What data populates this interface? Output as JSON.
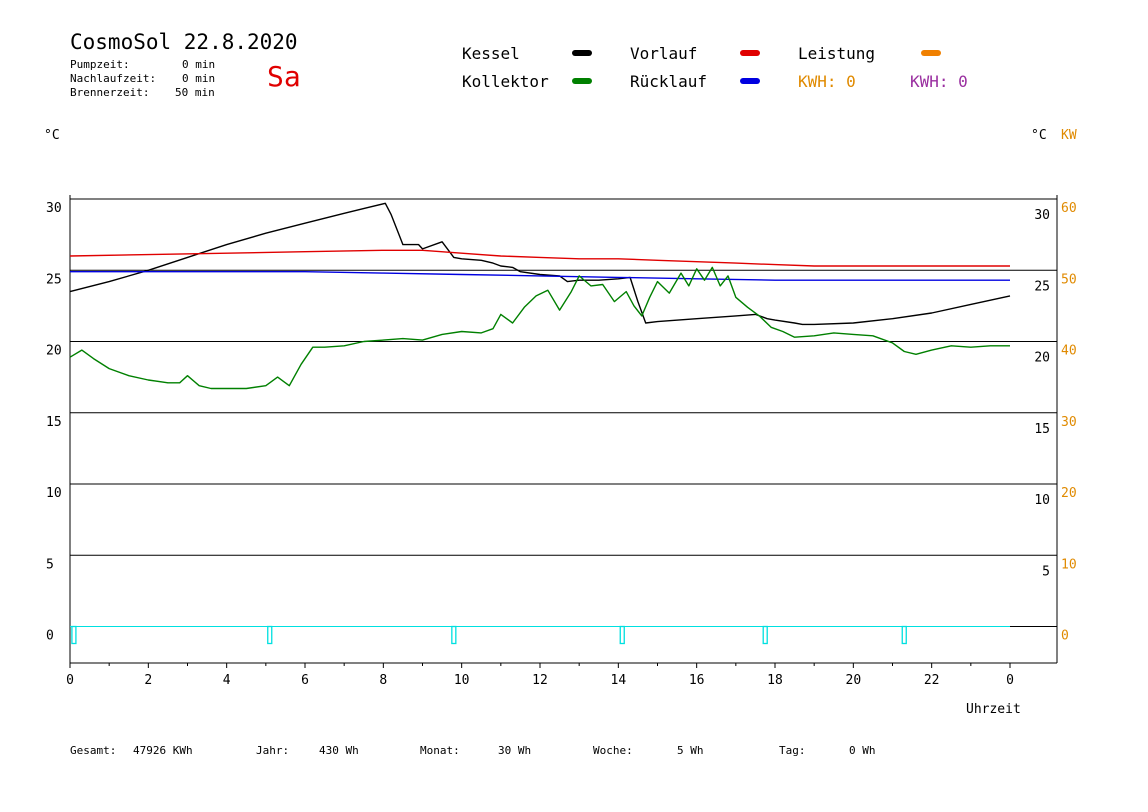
{
  "header": {
    "title": "CosmoSol 22.8.2020",
    "day": "Sa",
    "pumpzeit_label": "Pumpzeit:",
    "pumpzeit_value": "0 min",
    "nachlaufzeit_label": "Nachlaufzeit:",
    "nachlaufzeit_value": "0 min",
    "brennerzeit_label": "Brennerzeit:",
    "brennerzeit_value": "50 min"
  },
  "legend": {
    "kessel": "Kessel",
    "kollektor": "Kollektor",
    "vorlauf": "Vorlauf",
    "ruecklauf": "Rücklauf",
    "leistung": "Leistung",
    "kwh1": "KWH: 0",
    "kwh2": "KWH: 0"
  },
  "axes": {
    "left_unit": "°C",
    "right_unit_c": "°C",
    "right_unit_kw": "KW",
    "xlabel": "Uhrzeit"
  },
  "colors": {
    "kessel": "#000000",
    "kollektor": "#008000",
    "vorlauf": "#e00000",
    "ruecklauf": "#0000e0",
    "leistung": "#f08000",
    "kwh2": "#9a2fa0",
    "pump": "#00e0e0"
  },
  "footer": {
    "gesamt_label": "Gesamt:",
    "gesamt_value": "47926 KWh",
    "jahr_label": "Jahr:",
    "jahr_value": "430 Wh",
    "monat_label": "Monat:",
    "monat_value": "30 Wh",
    "woche_label": "Woche:",
    "woche_value": "5 Wh",
    "tag_label": "Tag:",
    "tag_value": "0 Wh"
  },
  "chart_data": {
    "type": "line",
    "xlabel": "Uhrzeit",
    "ylabel": "°C",
    "xlim": [
      0,
      24
    ],
    "ylim": [
      -2.5,
      30
    ],
    "y_ticks_left": [
      "30",
      "25",
      "20",
      "15",
      "10",
      "5",
      "0"
    ],
    "y_ticks_right_c": [
      "30",
      "25",
      "20",
      "15",
      "10",
      "5"
    ],
    "y_ticks_right_kw": [
      "60",
      "50",
      "40",
      "30",
      "20",
      "10",
      "0"
    ],
    "x_ticks": [
      "0",
      "2",
      "4",
      "6",
      "8",
      "10",
      "12",
      "14",
      "16",
      "18",
      "20",
      "22",
      "0"
    ],
    "grid_y": [
      30,
      25,
      20,
      15,
      10,
      5,
      0
    ],
    "series": [
      {
        "name": "Kessel",
        "color": "#000000",
        "x": [
          0,
          1,
          2,
          3,
          4,
          5,
          6,
          7,
          7.6,
          8.05,
          8.2,
          8.4,
          8.5,
          8.9,
          9.0,
          9.5,
          9.8,
          10.0,
          10.5,
          10.8,
          11.0,
          11.3,
          11.5,
          12.0,
          12.5,
          12.7,
          13.0,
          13.5,
          14.0,
          14.3,
          14.5,
          14.7,
          15.0,
          16.0,
          17.0,
          17.5,
          17.8,
          18.0,
          18.5,
          18.7,
          19.0,
          20.0,
          21.0,
          22.0,
          23.0,
          24.0
        ],
        "y": [
          23.5,
          24.2,
          25.0,
          25.9,
          26.8,
          27.6,
          28.3,
          29.0,
          29.4,
          29.7,
          28.9,
          27.5,
          26.8,
          26.8,
          26.5,
          27.0,
          25.9,
          25.8,
          25.7,
          25.5,
          25.3,
          25.2,
          24.9,
          24.7,
          24.6,
          24.2,
          24.3,
          24.3,
          24.4,
          24.5,
          22.8,
          21.3,
          21.4,
          21.6,
          21.8,
          21.9,
          21.6,
          21.5,
          21.3,
          21.2,
          21.2,
          21.3,
          21.6,
          22.0,
          22.6,
          23.2
        ]
      },
      {
        "name": "Vorlauf",
        "color": "#e00000",
        "x": [
          0,
          2,
          4,
          6,
          8,
          9,
          10,
          11,
          12,
          13,
          14,
          15,
          16,
          17,
          18,
          19,
          20,
          21,
          22,
          23,
          24
        ],
        "y": [
          26.0,
          26.1,
          26.2,
          26.3,
          26.4,
          26.4,
          26.2,
          26.0,
          25.9,
          25.8,
          25.8,
          25.7,
          25.6,
          25.5,
          25.4,
          25.3,
          25.3,
          25.3,
          25.3,
          25.3,
          25.3
        ]
      },
      {
        "name": "Rücklauf",
        "color": "#0000e0",
        "x": [
          0,
          2,
          4,
          6,
          8,
          10,
          12,
          14,
          16,
          18,
          20,
          22,
          24
        ],
        "y": [
          24.9,
          24.9,
          24.9,
          24.9,
          24.8,
          24.7,
          24.6,
          24.5,
          24.4,
          24.3,
          24.3,
          24.3,
          24.3
        ]
      },
      {
        "name": "Kollektor",
        "color": "#008000",
        "x": [
          0,
          0.3,
          0.6,
          1.0,
          1.5,
          2.0,
          2.5,
          2.8,
          3.0,
          3.3,
          3.6,
          4.0,
          4.5,
          5.0,
          5.3,
          5.6,
          5.9,
          6.2,
          6.5,
          7.0,
          7.5,
          8.0,
          8.5,
          9.0,
          9.5,
          10.0,
          10.5,
          10.8,
          11.0,
          11.3,
          11.6,
          11.9,
          12.2,
          12.5,
          12.8,
          13.0,
          13.3,
          13.6,
          13.9,
          14.2,
          14.4,
          14.6,
          14.8,
          15.0,
          15.3,
          15.6,
          15.8,
          16.0,
          16.2,
          16.4,
          16.6,
          16.8,
          17.0,
          17.3,
          17.6,
          17.9,
          18.2,
          18.5,
          19.0,
          19.5,
          20.0,
          20.5,
          21.0,
          21.3,
          21.6,
          22.0,
          22.5,
          23.0,
          23.5,
          24.0
        ],
        "y": [
          18.9,
          19.4,
          18.8,
          18.1,
          17.6,
          17.3,
          17.1,
          17.1,
          17.6,
          16.9,
          16.7,
          16.7,
          16.7,
          16.9,
          17.5,
          16.9,
          18.4,
          19.6,
          19.6,
          19.7,
          20.0,
          20.1,
          20.2,
          20.1,
          20.5,
          20.7,
          20.6,
          20.9,
          21.9,
          21.3,
          22.4,
          23.2,
          23.6,
          22.2,
          23.5,
          24.6,
          23.9,
          24.0,
          22.8,
          23.5,
          22.5,
          21.8,
          23.1,
          24.2,
          23.4,
          24.8,
          23.9,
          25.1,
          24.3,
          25.2,
          23.9,
          24.6,
          23.1,
          22.4,
          21.8,
          21.0,
          20.7,
          20.3,
          20.4,
          20.6,
          20.5,
          20.4,
          19.9,
          19.3,
          19.1,
          19.4,
          19.7,
          19.6,
          19.7,
          19.7
        ]
      },
      {
        "name": "Pumpe",
        "color": "#00e0e0",
        "x": [
          0.1,
          5.1,
          9.8,
          14.1,
          17.75,
          21.3
        ],
        "y": [
          0,
          0,
          0,
          0,
          0,
          0
        ]
      }
    ]
  }
}
